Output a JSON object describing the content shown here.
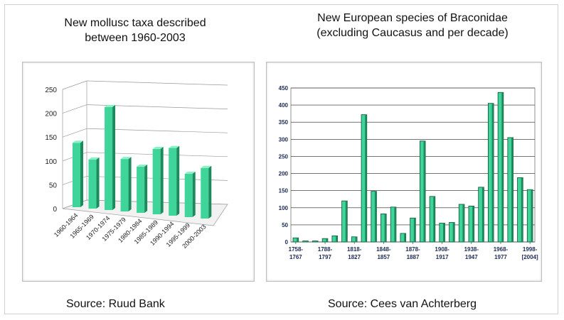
{
  "left": {
    "title_line1": "New mollusc taxa described",
    "title_line2": "between 1960-2003",
    "source": "Source: Ruud Bank"
  },
  "right": {
    "title_line1": "New European species of Braconidae",
    "title_line2": "(excluding Caucasus and per decade)",
    "source": "Source: Cees van Achterberg"
  },
  "colors": {
    "bar_fill": "#3fd49a",
    "bar_dark": "#1c8a5c",
    "grid": "#9a9a9a"
  },
  "chart_data": [
    {
      "type": "bar",
      "title": "New mollusc taxa described between 1960-2003",
      "categories": [
        "1960-1964",
        "1965-1969",
        "1970-1974",
        "1975-1979",
        "1980-1984",
        "1985-1989",
        "1990-1994",
        "1995-1999",
        "2000-2003"
      ],
      "values": [
        135,
        103,
        216,
        110,
        97,
        137,
        142,
        91,
        106
      ],
      "ylim": [
        0,
        250
      ],
      "yticks": [
        0,
        50,
        100,
        150,
        200,
        250
      ],
      "grid": true,
      "style": "3d"
    },
    {
      "type": "bar",
      "title": "New European species of Braconidae (excluding Caucasus and per decade)",
      "x_tick_labels": [
        {
          "line1": "1758-",
          "line2": "1767",
          "index": 0
        },
        {
          "line1": "1788-",
          "line2": "1797",
          "index": 3
        },
        {
          "line1": "1818-",
          "line2": "1827",
          "index": 6
        },
        {
          "line1": "1848-",
          "line2": "1857",
          "index": 9
        },
        {
          "line1": "1878-",
          "line2": "1887",
          "index": 12
        },
        {
          "line1": "1908-",
          "line2": "1917",
          "index": 15
        },
        {
          "line1": "1938-",
          "line2": "1947",
          "index": 18
        },
        {
          "line1": "1968-",
          "line2": "1977",
          "index": 21
        },
        {
          "line1": "1998-",
          "line2": "[2004]",
          "index": 24
        }
      ],
      "values": [
        12,
        3,
        3,
        10,
        18,
        120,
        15,
        372,
        148,
        82,
        102,
        25,
        70,
        295,
        133,
        55,
        57,
        110,
        105,
        160,
        405,
        437,
        305,
        188,
        153
      ],
      "ylim": [
        0,
        450
      ],
      "yticks": [
        0,
        50,
        100,
        150,
        200,
        250,
        300,
        350,
        400,
        450
      ],
      "grid": true
    }
  ]
}
